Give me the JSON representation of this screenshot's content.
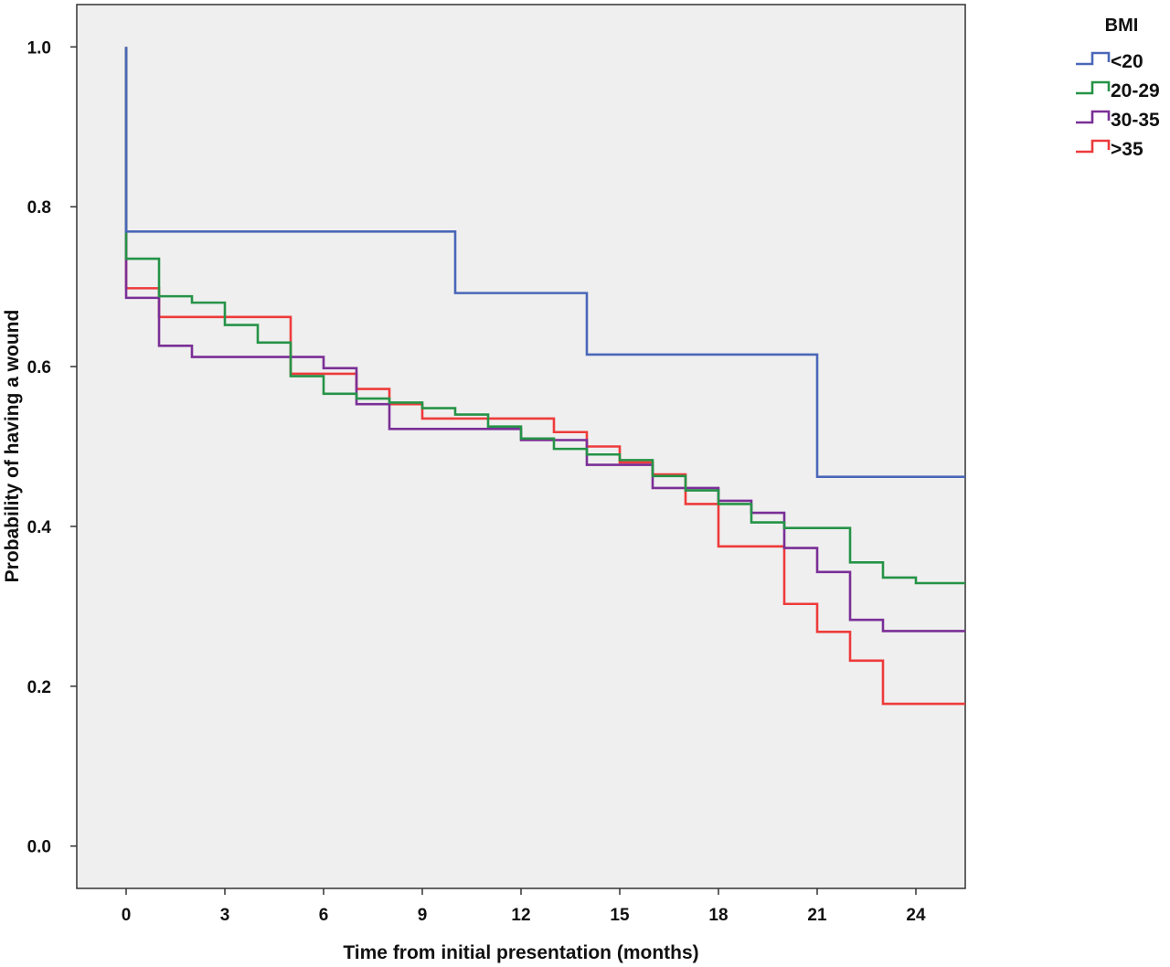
{
  "chart_data": {
    "type": "line",
    "step": true,
    "xlabel": "Time from initial presentation (months)",
    "ylabel": "Probability of having a wound",
    "xlim": [
      -1.5,
      25.5
    ],
    "ylim": [
      -0.053,
      1.053
    ],
    "xticks": [
      "0",
      "3",
      "6",
      "9",
      "12",
      "15",
      "18",
      "21",
      "24"
    ],
    "yticks": [
      "0.0",
      "0.2",
      "0.4",
      "0.6",
      "0.8",
      "1.0"
    ],
    "grid": false,
    "background": "#efefef",
    "legend": {
      "title": "BMI",
      "position": "outside-top-right"
    },
    "series": [
      {
        "name": "<20",
        "color": "#4a67b8",
        "points": [
          [
            0,
            1.0
          ],
          [
            0,
            0.769
          ],
          [
            10,
            0.692
          ],
          [
            14,
            0.615
          ],
          [
            21,
            0.462
          ],
          [
            25.5,
            0.462
          ]
        ]
      },
      {
        "name": "20-29",
        "color": "#259347",
        "points": [
          [
            0,
            1.0
          ],
          [
            0,
            0.735
          ],
          [
            1,
            0.688
          ],
          [
            2,
            0.68
          ],
          [
            3,
            0.652
          ],
          [
            4,
            0.63
          ],
          [
            5,
            0.588
          ],
          [
            6,
            0.566
          ],
          [
            7,
            0.56
          ],
          [
            8,
            0.555
          ],
          [
            9,
            0.548
          ],
          [
            10,
            0.54
          ],
          [
            11,
            0.525
          ],
          [
            12,
            0.51
          ],
          [
            13,
            0.497
          ],
          [
            14,
            0.49
          ],
          [
            15,
            0.483
          ],
          [
            16,
            0.463
          ],
          [
            17,
            0.445
          ],
          [
            18,
            0.428
          ],
          [
            19,
            0.405
          ],
          [
            20,
            0.398
          ],
          [
            22,
            0.355
          ],
          [
            23,
            0.336
          ],
          [
            24,
            0.329
          ],
          [
            25.5,
            0.329
          ]
        ]
      },
      {
        "name": "30-35",
        "color": "#7a2f96",
        "points": [
          [
            0,
            1.0
          ],
          [
            0,
            0.686
          ],
          [
            1,
            0.626
          ],
          [
            2,
            0.612
          ],
          [
            5,
            0.612
          ],
          [
            6,
            0.598
          ],
          [
            7,
            0.553
          ],
          [
            8,
            0.522
          ],
          [
            11,
            0.522
          ],
          [
            12,
            0.508
          ],
          [
            14,
            0.477
          ],
          [
            16,
            0.448
          ],
          [
            18,
            0.432
          ],
          [
            19,
            0.417
          ],
          [
            20,
            0.373
          ],
          [
            21,
            0.343
          ],
          [
            22,
            0.283
          ],
          [
            23,
            0.269
          ],
          [
            25.5,
            0.269
          ]
        ]
      },
      {
        "name": ">35",
        "color": "#ee3b3b",
        "points": [
          [
            0,
            1.0
          ],
          [
            0,
            0.698
          ],
          [
            1,
            0.662
          ],
          [
            5,
            0.591
          ],
          [
            7,
            0.572
          ],
          [
            8,
            0.553
          ],
          [
            9,
            0.535
          ],
          [
            13,
            0.518
          ],
          [
            14,
            0.5
          ],
          [
            15,
            0.48
          ],
          [
            16,
            0.465
          ],
          [
            17,
            0.428
          ],
          [
            18,
            0.375
          ],
          [
            20,
            0.303
          ],
          [
            21,
            0.268
          ],
          [
            22,
            0.232
          ],
          [
            23,
            0.178
          ],
          [
            25.5,
            0.178
          ]
        ]
      }
    ]
  }
}
